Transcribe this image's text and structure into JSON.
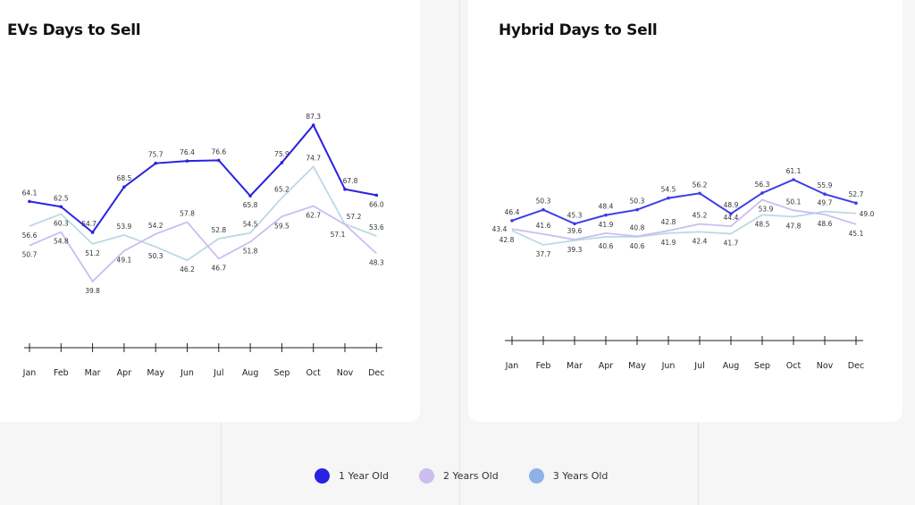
{
  "chart_data": [
    {
      "type": "line",
      "title": "EVs Days to Sell",
      "categories": [
        "Jan",
        "Feb",
        "Mar",
        "Apr",
        "May",
        "Jun",
        "Jul",
        "Aug",
        "Sep",
        "Oct",
        "Nov",
        "Dec"
      ],
      "series": [
        {
          "name": "1 Year Old",
          "color": "#2a22e0",
          "values": [
            64.1,
            62.5,
            54.7,
            68.5,
            75.7,
            76.4,
            76.6,
            65.8,
            75.9,
            87.3,
            67.8,
            66.0
          ]
        },
        {
          "name": "2 Years Old",
          "color": "#cbbdf0",
          "values": [
            50.7,
            54.8,
            39.8,
            49.1,
            54.2,
            57.8,
            46.7,
            51.8,
            59.5,
            62.7,
            57.1,
            48.3
          ]
        },
        {
          "name": "3 Years Old",
          "color": "#bcd9e2",
          "values": [
            56.6,
            60.3,
            51.2,
            53.9,
            50.3,
            46.2,
            52.8,
            54.5,
            65.2,
            74.7,
            57.2,
            53.6
          ]
        }
      ],
      "data_labels": true,
      "grid": false
    },
    {
      "type": "line",
      "title": "Hybrid Days to Sell",
      "categories": [
        "Jan",
        "Feb",
        "Mar",
        "Apr",
        "May",
        "Jun",
        "Jul",
        "Aug",
        "Sep",
        "Oct",
        "Nov",
        "Dec"
      ],
      "series": [
        {
          "name": "1 Year Old",
          "color": "#3b3fe6",
          "values": [
            46.4,
            50.3,
            45.3,
            48.4,
            50.3,
            54.5,
            56.2,
            48.9,
            56.3,
            61.1,
            55.9,
            52.7
          ]
        },
        {
          "name": "2 Years Old",
          "color": "#cbbdf0",
          "values": [
            43.4,
            41.6,
            39.6,
            41.9,
            40.8,
            42.8,
            45.2,
            44.4,
            53.9,
            50.1,
            48.6,
            45.1
          ]
        },
        {
          "name": "3 Years Old",
          "color": "#bcd9e2",
          "values": [
            42.8,
            37.7,
            39.3,
            40.6,
            40.6,
            41.9,
            42.4,
            41.7,
            48.5,
            47.8,
            49.7,
            49.0
          ]
        }
      ],
      "data_labels": true,
      "grid": false
    }
  ],
  "legend": {
    "placement": "bottom",
    "items": [
      {
        "label": "1 Year Old",
        "color": "#2a22e0"
      },
      {
        "label": "2 Years Old",
        "color": "#cbbdf0"
      },
      {
        "label": "3 Years Old",
        "color": "#8fb1e8"
      }
    ]
  }
}
